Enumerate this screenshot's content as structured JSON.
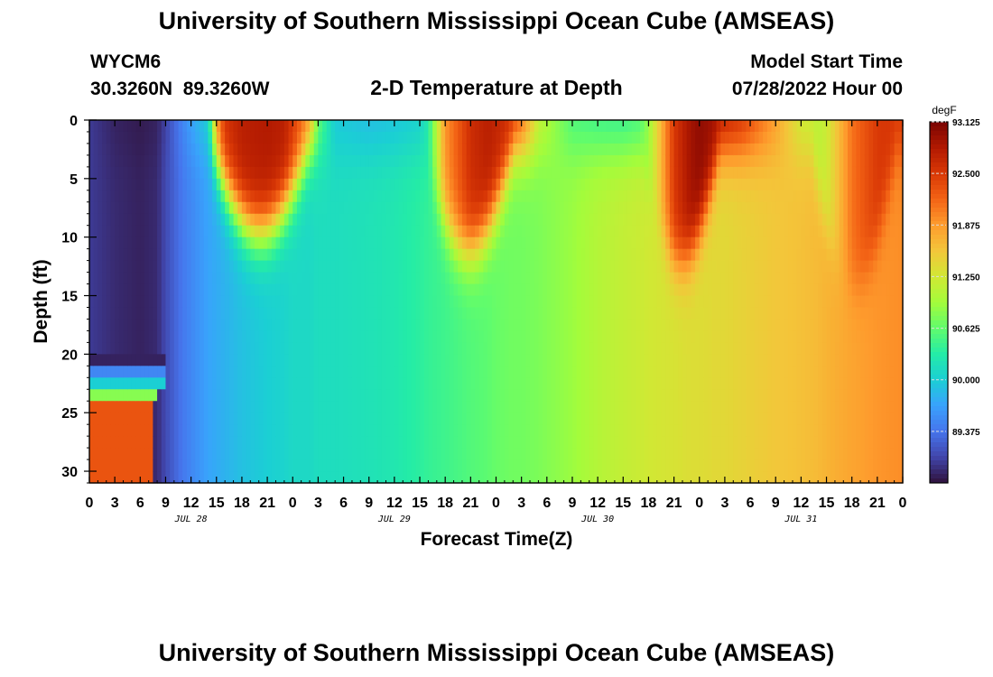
{
  "page": {
    "title": "University of Southern Mississippi Ocean Cube (AMSEAS)",
    "footer_title": "University of Southern Mississippi Ocean Cube (AMSEAS)",
    "station_id": "WYCM6",
    "station_coords": "30.3260N  89.3260W",
    "plot_title": "2-D Temperature at Depth",
    "model_start_label": "Model Start Time",
    "model_start_value": "07/28/2022 Hour 00"
  },
  "chart_data": {
    "type": "heatmap",
    "title": "2-D Temperature at Depth",
    "xlabel": "Forecast Time(Z)",
    "ylabel": "Depth (ft)",
    "x_range_hours": [
      0,
      96
    ],
    "x_tick_step_hours": 3,
    "x_tick_labels": [
      "0",
      "3",
      "6",
      "9",
      "12",
      "15",
      "18",
      "21",
      "0",
      "3",
      "6",
      "9",
      "12",
      "15",
      "18",
      "21",
      "0",
      "3",
      "6",
      "9",
      "12",
      "15",
      "18",
      "21",
      "0",
      "3",
      "6",
      "9",
      "12",
      "15",
      "18",
      "21",
      "0"
    ],
    "date_labels": [
      {
        "label": "JUL 28",
        "hour": 12
      },
      {
        "label": "JUL 29",
        "hour": 36
      },
      {
        "label": "JUL 30",
        "hour": 60
      },
      {
        "label": "JUL 31",
        "hour": 84
      }
    ],
    "y_range_ft": [
      0,
      31
    ],
    "y_ticks": [
      0,
      5,
      10,
      15,
      20,
      25,
      30
    ],
    "colorbar": {
      "unit": "degF",
      "min": 88.75,
      "max": 93.125,
      "ticks": [
        "93.125",
        "92.500",
        "91.875",
        "91.250",
        "90.625",
        "90.000",
        "89.375"
      ],
      "colors": [
        "#30123b",
        "#4145ab",
        "#4675ed",
        "#39a2fc",
        "#1bcfd4",
        "#24eca6",
        "#61fc6c",
        "#a4fc3b",
        "#d1e834",
        "#f3c63a",
        "#fe9b2d",
        "#f36315",
        "#d93806",
        "#b11901",
        "#7a0403"
      ]
    },
    "temperature_profile": {
      "hours": [
        0,
        3,
        6,
        8,
        9,
        11,
        12,
        14,
        15,
        16,
        18,
        21,
        23,
        24,
        26,
        27,
        29,
        33,
        36,
        39,
        40,
        42,
        45,
        47,
        48,
        50,
        51,
        53,
        57,
        60,
        63,
        65,
        66,
        69,
        71,
        72,
        74,
        75,
        77,
        81,
        84,
        86,
        87,
        90,
        93,
        96
      ],
      "surface_degF": [
        89.0,
        88.85,
        88.8,
        88.85,
        89.05,
        89.5,
        89.7,
        90.05,
        91.9,
        92.55,
        92.75,
        92.8,
        92.75,
        92.5,
        92.0,
        90.7,
        89.95,
        89.85,
        89.9,
        90.0,
        90.3,
        91.9,
        92.6,
        92.75,
        92.7,
        92.6,
        92.3,
        91.2,
        90.5,
        90.4,
        90.35,
        90.45,
        90.9,
        92.5,
        92.9,
        93.0,
        92.9,
        92.8,
        92.6,
        91.85,
        91.2,
        91.1,
        91.2,
        92.1,
        92.5,
        92.55
      ],
      "deep_degF": [
        89.0,
        88.9,
        88.85,
        88.9,
        89.1,
        89.4,
        89.5,
        89.7,
        89.75,
        89.8,
        89.9,
        90.0,
        90.05,
        90.1,
        90.1,
        90.15,
        90.15,
        90.2,
        90.25,
        90.35,
        90.4,
        90.45,
        90.55,
        90.6,
        90.65,
        90.7,
        90.7,
        90.75,
        90.9,
        91.05,
        91.15,
        91.2,
        91.25,
        91.3,
        91.35,
        91.35,
        91.4,
        91.4,
        91.45,
        91.55,
        91.6,
        91.65,
        91.7,
        91.8,
        91.9,
        91.95
      ],
      "warm_pulse_depth_ft": [
        {
          "start_hour": 15,
          "end_hour": 27,
          "max_depth_ft": 9.5
        },
        {
          "start_hour": 40,
          "end_hour": 51,
          "max_depth_ft": 11
        },
        {
          "start_hour": 66,
          "end_hour": 75,
          "max_depth_ft": 12
        },
        {
          "start_hour": 86,
          "end_hour": 96,
          "max_depth_ft": 14
        }
      ],
      "bottom_layers": [
        {
          "depth_from_ft": 20.5,
          "depth_to_ft": 21.5,
          "until_hour": 9,
          "temp_degF": 88.85
        },
        {
          "depth_from_ft": 21.5,
          "depth_to_ft": 22.5,
          "until_hour": 9,
          "temp_degF": 89.5
        },
        {
          "depth_from_ft": 22.5,
          "depth_to_ft": 23.5,
          "until_hour": 9,
          "temp_degF": 90.0
        },
        {
          "depth_from_ft": 23.5,
          "depth_to_ft": 24.5,
          "until_hour": 8,
          "temp_degF": 90.8
        },
        {
          "depth_from_ft": 24.5,
          "depth_to_ft": 31,
          "until_hour": 7.5,
          "temp_degF": 92.3
        }
      ]
    }
  }
}
